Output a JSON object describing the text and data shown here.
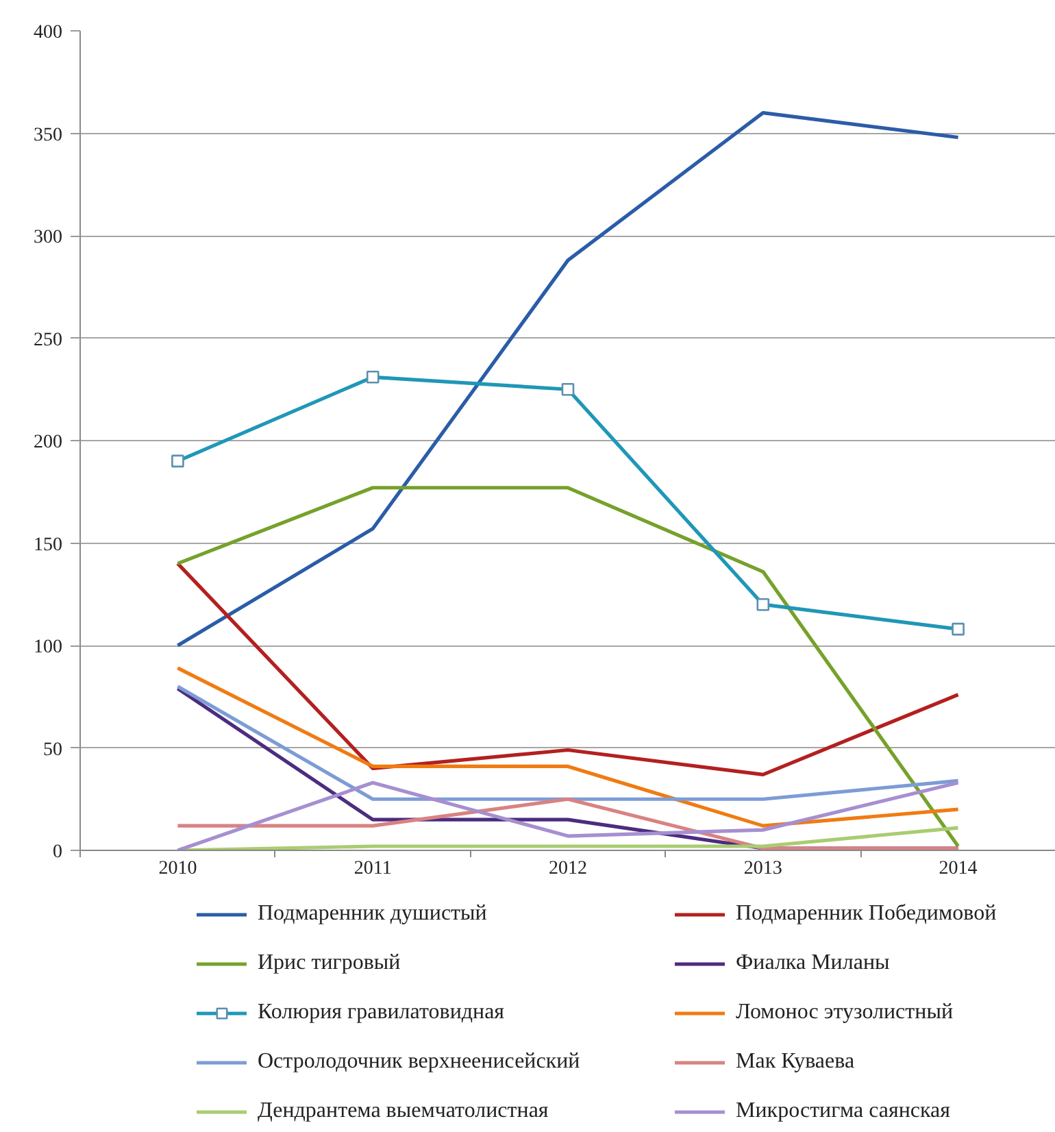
{
  "chart_data": {
    "type": "line",
    "categories": [
      "2010",
      "2011",
      "2012",
      "2013",
      "2014"
    ],
    "series": [
      {
        "name": "Подмаренник душистый",
        "color": "#2b5ca8",
        "values": [
          100,
          157,
          288,
          360,
          348
        ]
      },
      {
        "name": "Подмаренник Победимовой",
        "color": "#b3201f",
        "values": [
          140,
          40,
          49,
          37,
          76
        ]
      },
      {
        "name": "Ирис тигровый",
        "color": "#76a12b",
        "values": [
          140,
          177,
          177,
          136,
          2
        ]
      },
      {
        "name": "Фиалка Миланы",
        "color": "#4c2c80",
        "values": [
          79,
          15,
          15,
          1,
          1
        ]
      },
      {
        "name": "Колюрия гравилатовидная",
        "color": "#1f97b7",
        "values": [
          190,
          231,
          225,
          120,
          108
        ],
        "marker": "square"
      },
      {
        "name": "Ломонос этузолистный",
        "color": "#f07b12",
        "values": [
          89,
          41,
          41,
          12,
          20
        ]
      },
      {
        "name": "Остролодочник верхнеенисейский",
        "color": "#7d9cd6",
        "values": [
          80,
          25,
          25,
          25,
          34
        ]
      },
      {
        "name": "Мак Куваева",
        "color": "#d98282",
        "values": [
          12,
          12,
          25,
          1,
          1
        ]
      },
      {
        "name": "Дендрантема выемчатолистная",
        "color": "#a9cc72",
        "values": [
          0,
          2,
          2,
          2,
          11
        ]
      },
      {
        "name": "Микростигма саянская",
        "color": "#a68fd0",
        "values": [
          0,
          33,
          7,
          10,
          33
        ]
      }
    ],
    "ylim": [
      0,
      400
    ],
    "yticks": [
      0,
      50,
      100,
      150,
      200,
      250,
      300,
      350,
      400
    ],
    "grid": "y",
    "legend": "bottom",
    "line_style": "solid"
  }
}
